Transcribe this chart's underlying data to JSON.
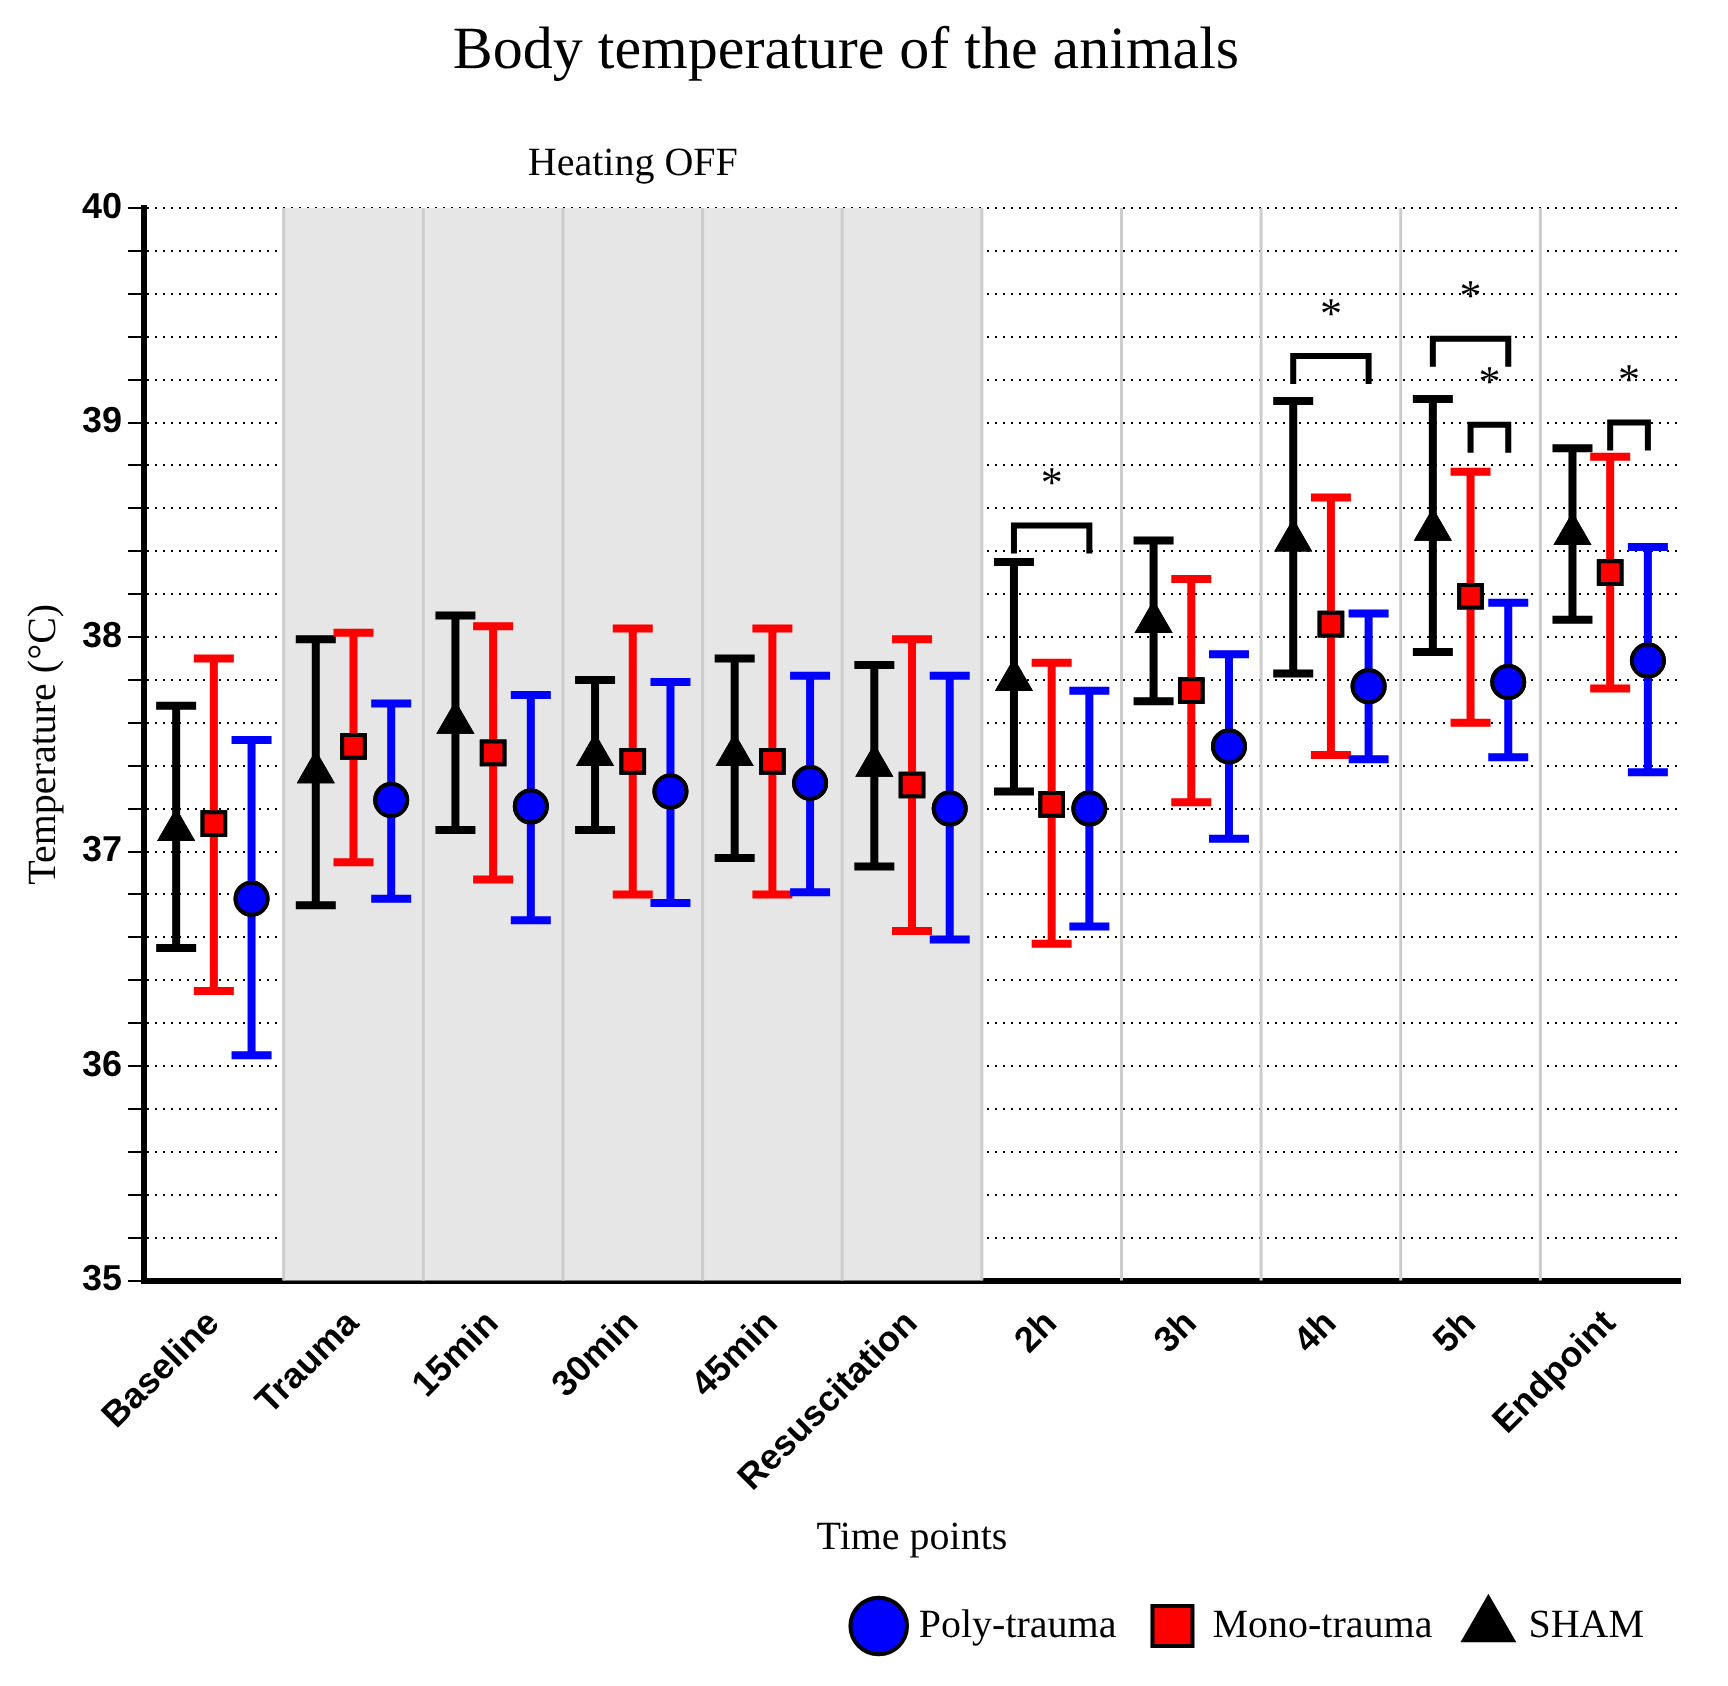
{
  "chart_data": {
    "type": "scatter",
    "title": "Body temperature of the animals",
    "xlabel": "Time points",
    "ylabel": "Temperature (°C)",
    "categories": [
      "Baseline",
      "Trauma",
      "15min",
      "30min",
      "45min",
      "Resuscitation",
      "2h",
      "3h",
      "4h",
      "5h",
      "Endpoint"
    ],
    "ylim": [
      35,
      40
    ],
    "yticks": [
      35,
      {
        "value": 35.2,
        "label": null
      },
      {
        "value": 35.4,
        "label": null
      },
      {
        "value": 35.6,
        "label": null
      },
      {
        "value": 35.8,
        "label": null
      },
      36,
      {
        "value": 36.2,
        "label": null
      },
      {
        "value": 36.4,
        "label": null
      },
      {
        "value": 36.6,
        "label": null
      },
      {
        "value": 36.8,
        "label": null
      },
      37,
      {
        "value": 37.2,
        "label": null
      },
      {
        "value": 37.4,
        "label": null
      },
      {
        "value": 37.6,
        "label": null
      },
      {
        "value": 37.8,
        "label": null
      },
      38,
      {
        "value": 38.2,
        "label": null
      },
      {
        "value": 38.4,
        "label": null
      },
      {
        "value": 38.6,
        "label": null
      },
      {
        "value": 38.8,
        "label": null
      },
      39,
      {
        "value": 39.2,
        "label": null
      },
      {
        "value": 39.4,
        "label": null
      },
      {
        "value": 39.6,
        "label": null
      },
      {
        "value": 39.8,
        "label": null
      },
      40
    ],
    "grid": true,
    "legend": "bottom right",
    "bands": [
      {
        "axis": "x",
        "from": "Trauma",
        "to": "Resuscitation",
        "label": "Heating OFF",
        "color": "#e6e6e6"
      }
    ],
    "annotations": [
      "*",
      "*",
      "*",
      "*",
      "*"
    ],
    "series": [
      {
        "name": "SHAM",
        "color": "#000000",
        "marker": "triangle",
        "values": [
          37.1,
          37.37,
          37.6,
          37.45,
          37.45,
          37.4,
          37.8,
          38.07,
          38.45,
          38.5,
          38.48
        ],
        "errors": [
          [
            36.55,
            37.68
          ],
          [
            36.75,
            37.99
          ],
          [
            37.1,
            38.1
          ],
          [
            37.1,
            37.8
          ],
          [
            36.97,
            37.9
          ],
          [
            36.93,
            37.87
          ],
          [
            37.28,
            38.35
          ],
          [
            37.7,
            38.45
          ],
          [
            37.83,
            39.1
          ],
          [
            37.93,
            39.11
          ],
          [
            38.08,
            38.88
          ]
        ]
      },
      {
        "name": "Mono-trauma",
        "color": "#ff0000",
        "marker": "square",
        "values": [
          37.13,
          37.49,
          37.46,
          37.42,
          37.42,
          37.31,
          37.22,
          37.75,
          38.06,
          38.19,
          38.3
        ],
        "errors": [
          [
            36.35,
            37.9
          ],
          [
            36.95,
            38.02
          ],
          [
            36.87,
            38.05
          ],
          [
            36.8,
            38.04
          ],
          [
            36.8,
            38.04
          ],
          [
            36.63,
            37.99
          ],
          [
            36.57,
            37.88
          ],
          [
            37.23,
            38.27
          ],
          [
            37.45,
            38.65
          ],
          [
            37.6,
            38.77
          ],
          [
            37.76,
            38.84
          ]
        ]
      },
      {
        "name": "Poly-trauma",
        "color": "#0000ff",
        "marker": "circle",
        "values": [
          36.78,
          37.24,
          37.21,
          37.28,
          37.32,
          37.2,
          37.2,
          37.49,
          37.77,
          37.79,
          37.89
        ],
        "errors": [
          [
            36.05,
            37.52
          ],
          [
            36.78,
            37.69
          ],
          [
            36.68,
            37.73
          ],
          [
            36.76,
            37.79
          ],
          [
            36.81,
            37.82
          ],
          [
            36.59,
            37.82
          ],
          [
            36.65,
            37.75
          ],
          [
            37.06,
            37.92
          ],
          [
            37.43,
            38.11
          ],
          [
            37.44,
            38.16
          ],
          [
            37.37,
            38.42
          ]
        ]
      }
    ]
  }
}
